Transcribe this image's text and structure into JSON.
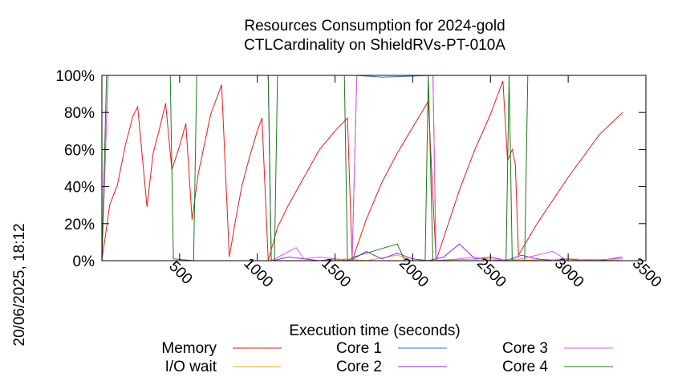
{
  "timestamp": "20/06/2025, 18:12",
  "chart_data": {
    "type": "line",
    "title": "Resources Consumption for 2024-gold",
    "subtitle": "CTLCardinality on ShieldRVs-PT-010A",
    "xlabel": "Execution time (seconds)",
    "ylabel": "",
    "xlim": [
      0,
      3500
    ],
    "ylim": [
      0,
      100
    ],
    "x_ticks": [
      500,
      1000,
      1500,
      2000,
      2500,
      3000,
      3500
    ],
    "y_ticks": [
      0,
      20,
      40,
      60,
      80,
      100
    ],
    "y_tick_labels": [
      "0%",
      "20%",
      "40%",
      "60%",
      "80%",
      "100%"
    ],
    "grid": false,
    "legend_position": "bottom",
    "series": [
      {
        "name": "Memory",
        "color": "#e8191b",
        "points": [
          [
            0,
            0
          ],
          [
            50,
            30
          ],
          [
            100,
            41
          ],
          [
            150,
            62
          ],
          [
            200,
            78
          ],
          [
            230,
            83
          ],
          [
            290,
            29
          ],
          [
            330,
            58
          ],
          [
            370,
            71
          ],
          [
            410,
            85
          ],
          [
            450,
            49
          ],
          [
            500,
            62
          ],
          [
            540,
            74
          ],
          [
            580,
            22
          ],
          [
            620,
            47
          ],
          [
            660,
            63
          ],
          [
            700,
            79
          ],
          [
            770,
            95
          ],
          [
            820,
            2
          ],
          [
            860,
            22
          ],
          [
            900,
            40
          ],
          [
            950,
            56
          ],
          [
            1000,
            70
          ],
          [
            1030,
            77
          ],
          [
            1070,
            0
          ],
          [
            1130,
            18
          ],
          [
            1200,
            30
          ],
          [
            1300,
            45
          ],
          [
            1400,
            60
          ],
          [
            1500,
            70
          ],
          [
            1580,
            77
          ],
          [
            1610,
            0
          ],
          [
            1700,
            22
          ],
          [
            1800,
            42
          ],
          [
            1900,
            58
          ],
          [
            2000,
            72
          ],
          [
            2100,
            86
          ],
          [
            2150,
            0
          ],
          [
            2300,
            38
          ],
          [
            2400,
            60
          ],
          [
            2500,
            79
          ],
          [
            2580,
            97
          ],
          [
            2610,
            54
          ],
          [
            2640,
            60
          ],
          [
            2660,
            52
          ],
          [
            2680,
            3
          ],
          [
            2800,
            20
          ],
          [
            3000,
            45
          ],
          [
            3200,
            68
          ],
          [
            3350,
            80
          ]
        ]
      },
      {
        "name": "I/O wait",
        "color": "#f5a623",
        "points": [
          [
            0,
            0
          ],
          [
            1000,
            0
          ],
          [
            1500,
            0
          ],
          [
            1560,
            1
          ],
          [
            1700,
            0
          ],
          [
            1900,
            3
          ],
          [
            2000,
            0
          ],
          [
            2500,
            1
          ],
          [
            2600,
            0
          ],
          [
            3000,
            1
          ],
          [
            3350,
            0
          ]
        ]
      },
      {
        "name": "Core 1",
        "color": "#3b6fd6",
        "points": [
          [
            0,
            0
          ],
          [
            40,
            100
          ],
          [
            1070,
            100
          ],
          [
            1090,
            0
          ],
          [
            1610,
            0
          ],
          [
            1640,
            100
          ],
          [
            1800,
            99
          ],
          [
            2130,
            100
          ],
          [
            2150,
            0
          ],
          [
            2200,
            0
          ],
          [
            2600,
            0
          ],
          [
            2650,
            0
          ],
          [
            3350,
            0
          ]
        ]
      },
      {
        "name": "Core 2",
        "color": "#8a2be2",
        "points": [
          [
            0,
            0
          ],
          [
            1100,
            0
          ],
          [
            1200,
            2
          ],
          [
            1300,
            1
          ],
          [
            1400,
            0
          ],
          [
            1500,
            1
          ],
          [
            1600,
            0
          ],
          [
            1700,
            5
          ],
          [
            1800,
            1
          ],
          [
            1900,
            4
          ],
          [
            2000,
            1
          ],
          [
            2100,
            0
          ],
          [
            2200,
            2
          ],
          [
            2300,
            9
          ],
          [
            2400,
            1
          ],
          [
            2500,
            2
          ],
          [
            2600,
            0
          ],
          [
            2700,
            3
          ],
          [
            2800,
            1
          ],
          [
            2900,
            0
          ],
          [
            3000,
            1
          ],
          [
            3100,
            0
          ],
          [
            3200,
            0
          ],
          [
            3350,
            2
          ]
        ]
      },
      {
        "name": "Core 3",
        "color": "#e05ce0",
        "points": [
          [
            0,
            0
          ],
          [
            40,
            100
          ],
          [
            450,
            100
          ],
          [
            500,
            100
          ],
          [
            800,
            100
          ],
          [
            1070,
            100
          ],
          [
            1090,
            0
          ],
          [
            1250,
            7
          ],
          [
            1300,
            1
          ],
          [
            1400,
            2
          ],
          [
            1500,
            1
          ],
          [
            1610,
            0
          ],
          [
            1640,
            100
          ],
          [
            2130,
            100
          ],
          [
            2150,
            0
          ],
          [
            2300,
            1
          ],
          [
            2400,
            2
          ],
          [
            2500,
            0
          ],
          [
            2700,
            1
          ],
          [
            2900,
            5
          ],
          [
            3000,
            0
          ],
          [
            3350,
            1
          ]
        ]
      },
      {
        "name": "Core 4",
        "color": "#1b7a1b",
        "points": [
          [
            0,
            0
          ],
          [
            30,
            100
          ],
          [
            440,
            100
          ],
          [
            460,
            1
          ],
          [
            590,
            0
          ],
          [
            610,
            100
          ],
          [
            1070,
            100
          ],
          [
            1090,
            0
          ],
          [
            1110,
            0
          ],
          [
            1130,
            100
          ],
          [
            1560,
            100
          ],
          [
            1580,
            0
          ],
          [
            1620,
            2
          ],
          [
            1900,
            9
          ],
          [
            1950,
            0
          ],
          [
            2080,
            0
          ],
          [
            2100,
            100
          ],
          [
            2130,
            0
          ],
          [
            2600,
            0
          ],
          [
            2620,
            100
          ],
          [
            2640,
            0
          ],
          [
            2720,
            0
          ],
          [
            2740,
            100
          ],
          [
            3350,
            100
          ]
        ]
      }
    ]
  }
}
